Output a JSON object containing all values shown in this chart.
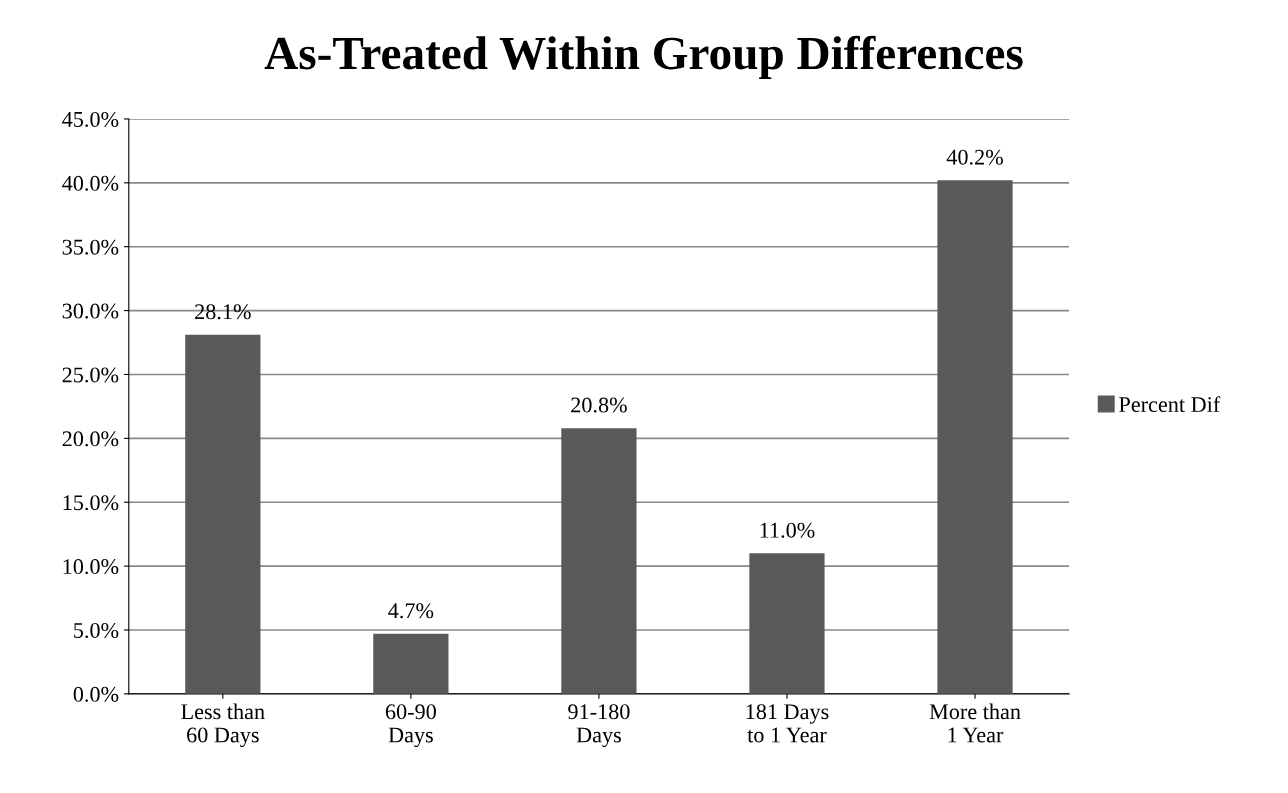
{
  "chart_data": {
    "type": "bar",
    "title": "As-Treated Within Group Differences",
    "categories": [
      "Less than\n60 Days",
      "60-90\nDays",
      "91-180\nDays",
      "181 Days\nto 1 Year",
      "More than\n1 Year"
    ],
    "series": [
      {
        "name": "Percent Dif",
        "color": "#595959",
        "values": [
          28.1,
          4.7,
          20.8,
          11.0,
          40.2
        ],
        "value_labels": [
          "28.1%",
          "4.7%",
          "20.8%",
          "11.0%",
          "40.2%"
        ]
      }
    ],
    "ylim": [
      0,
      45
    ],
    "yticks": [
      {
        "value": 0,
        "label": "0.0%"
      },
      {
        "value": 5,
        "label": "5.0%"
      },
      {
        "value": 10,
        "label": "10.0%"
      },
      {
        "value": 15,
        "label": "15.0%"
      },
      {
        "value": 20,
        "label": "20.0%"
      },
      {
        "value": 25,
        "label": "25.0%"
      },
      {
        "value": 30,
        "label": "30.0%"
      },
      {
        "value": 35,
        "label": "35.0%"
      },
      {
        "value": 40,
        "label": "40.0%"
      },
      {
        "value": 45,
        "label": "45.0%"
      }
    ],
    "grid": "y",
    "legend": "right"
  }
}
